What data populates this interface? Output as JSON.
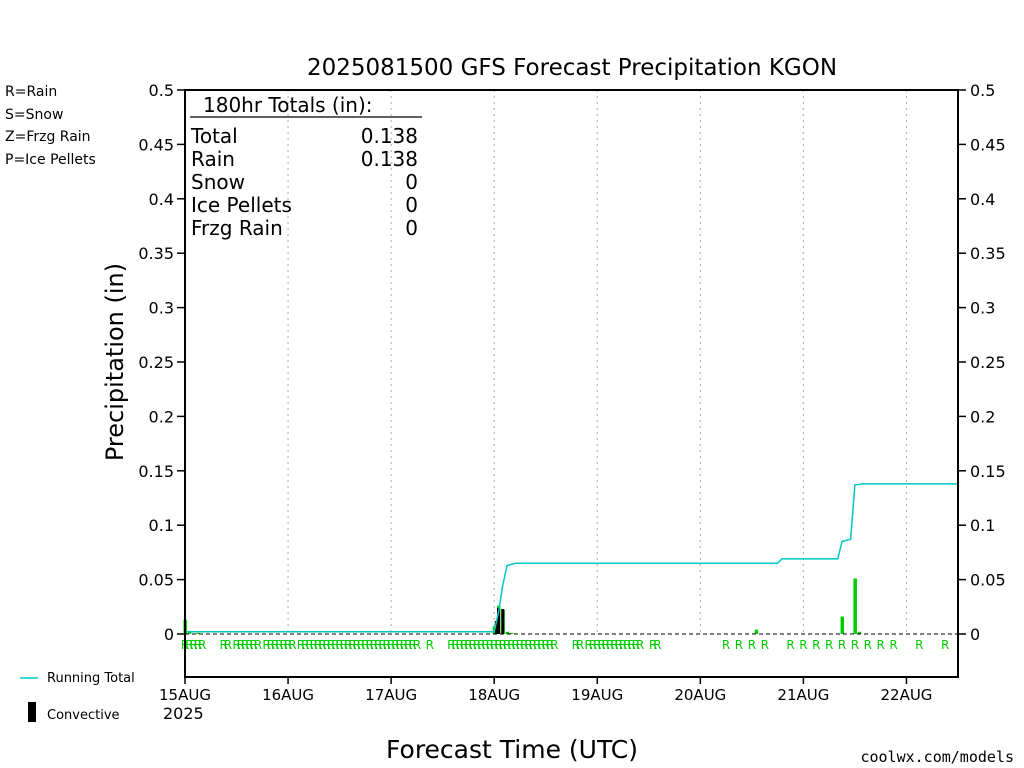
{
  "title": "2025081500 GFS Forecast Precipitation KGON",
  "ylabel": "Precipitation (in)",
  "xlabel": "Forecast Time (UTC)",
  "year_label": "2025",
  "credit": "coolwx.com/models",
  "legend_left": [
    {
      "text": "R=Rain",
      "color": "#22cc22"
    },
    {
      "text": "S=Snow",
      "color": "#3a4fd8"
    },
    {
      "text": "Z=Frzg Rain",
      "color": "#f08a3c"
    },
    {
      "text": "P=Ice Pellets",
      "color": "#e0208a"
    }
  ],
  "legend_bottom": {
    "running_total": "Running Total",
    "convective": "Convective"
  },
  "totals": {
    "header": "180hr Totals (in):",
    "rows": [
      {
        "label": "Total",
        "value": "0.138"
      },
      {
        "label": "Rain",
        "value": "0.138"
      },
      {
        "label": "Snow",
        "value": "0"
      },
      {
        "label": "Ice Pellets",
        "value": "0"
      },
      {
        "label": "Frzg Rain",
        "value": "0"
      }
    ]
  },
  "colors": {
    "rain": "#00cc00",
    "running_total": "#00c8c8",
    "convective": "#000000",
    "credit": "#cc2222"
  },
  "chart_data": {
    "type": "bar",
    "title": "2025081500 GFS Forecast Precipitation KGON",
    "xlabel": "Forecast Time (UTC)",
    "ylabel": "Precipitation (in)",
    "x_unit": "forecast hour from 15AUG 00Z",
    "xlim": [
      0,
      180
    ],
    "ylim": [
      0,
      0.5
    ],
    "yticks": [
      0,
      0.05,
      0.1,
      0.15,
      0.2,
      0.25,
      0.3,
      0.35,
      0.4,
      0.45,
      0.5
    ],
    "ytick_labels": [
      "0",
      "0.05",
      "0.1",
      "0.15",
      "0.2",
      "0.25",
      "0.3",
      "0.35",
      "0.4",
      "0.45",
      "0.5"
    ],
    "xticks": [
      {
        "h": 0,
        "label": "15AUG"
      },
      {
        "h": 24,
        "label": "16AUG"
      },
      {
        "h": 48,
        "label": "17AUG"
      },
      {
        "h": 72,
        "label": "18AUG"
      },
      {
        "h": 96,
        "label": "19AUG"
      },
      {
        "h": 120,
        "label": "20AUG"
      },
      {
        "h": 144,
        "label": "21AUG"
      },
      {
        "h": 168,
        "label": "22AUG"
      }
    ],
    "grid": "vertical dotted at each day",
    "series": [
      {
        "name": "Running Total",
        "type": "line",
        "points": [
          [
            0,
            0.002
          ],
          [
            72,
            0.002
          ],
          [
            73,
            0.02
          ],
          [
            74,
            0.045
          ],
          [
            75,
            0.063
          ],
          [
            76,
            0.064
          ],
          [
            77,
            0.065
          ],
          [
            138,
            0.065
          ],
          [
            139,
            0.069
          ],
          [
            152,
            0.069
          ],
          [
            153,
            0.085
          ],
          [
            155,
            0.087
          ],
          [
            156,
            0.137
          ],
          [
            158,
            0.138
          ],
          [
            180,
            0.138
          ]
        ]
      },
      {
        "name": "Convective",
        "type": "bar",
        "points": [
          [
            72.5,
            0.012
          ],
          [
            73,
            0.024
          ],
          [
            74,
            0.023
          ]
        ]
      },
      {
        "name": "Rain",
        "type": "bar",
        "points": [
          [
            0,
            0.013
          ],
          [
            1,
            0.002
          ],
          [
            3,
            0.001
          ],
          [
            72,
            0.007
          ],
          [
            73,
            0.026
          ],
          [
            74,
            0.022
          ],
          [
            75,
            0.002
          ],
          [
            76,
            0.001
          ],
          [
            133,
            0.004
          ],
          [
            153,
            0.016
          ],
          [
            156,
            0.051
          ],
          [
            157,
            0.002
          ]
        ]
      }
    ],
    "ptype_marks": {
      "letter": "R",
      "hours": [
        0,
        1,
        2,
        3,
        4,
        9,
        10,
        12,
        13,
        14,
        15,
        16,
        17,
        19,
        20,
        21,
        22,
        23,
        24,
        25,
        27,
        28,
        29,
        30,
        31,
        32,
        33,
        34,
        35,
        36,
        37,
        38,
        39,
        40,
        41,
        42,
        43,
        44,
        45,
        46,
        47,
        48,
        49,
        50,
        51,
        52,
        53,
        54,
        57,
        62,
        63,
        64,
        65,
        66,
        67,
        68,
        69,
        70,
        71,
        72,
        73,
        74,
        75,
        76,
        77,
        78,
        79,
        80,
        81,
        82,
        83,
        84,
        85,
        86,
        91,
        92,
        94,
        95,
        96,
        97,
        98,
        99,
        100,
        101,
        102,
        103,
        104,
        105,
        106,
        109,
        110,
        126,
        129,
        132,
        135,
        141,
        144,
        147,
        150,
        153,
        156,
        159,
        162,
        165,
        171,
        177
      ]
    }
  }
}
